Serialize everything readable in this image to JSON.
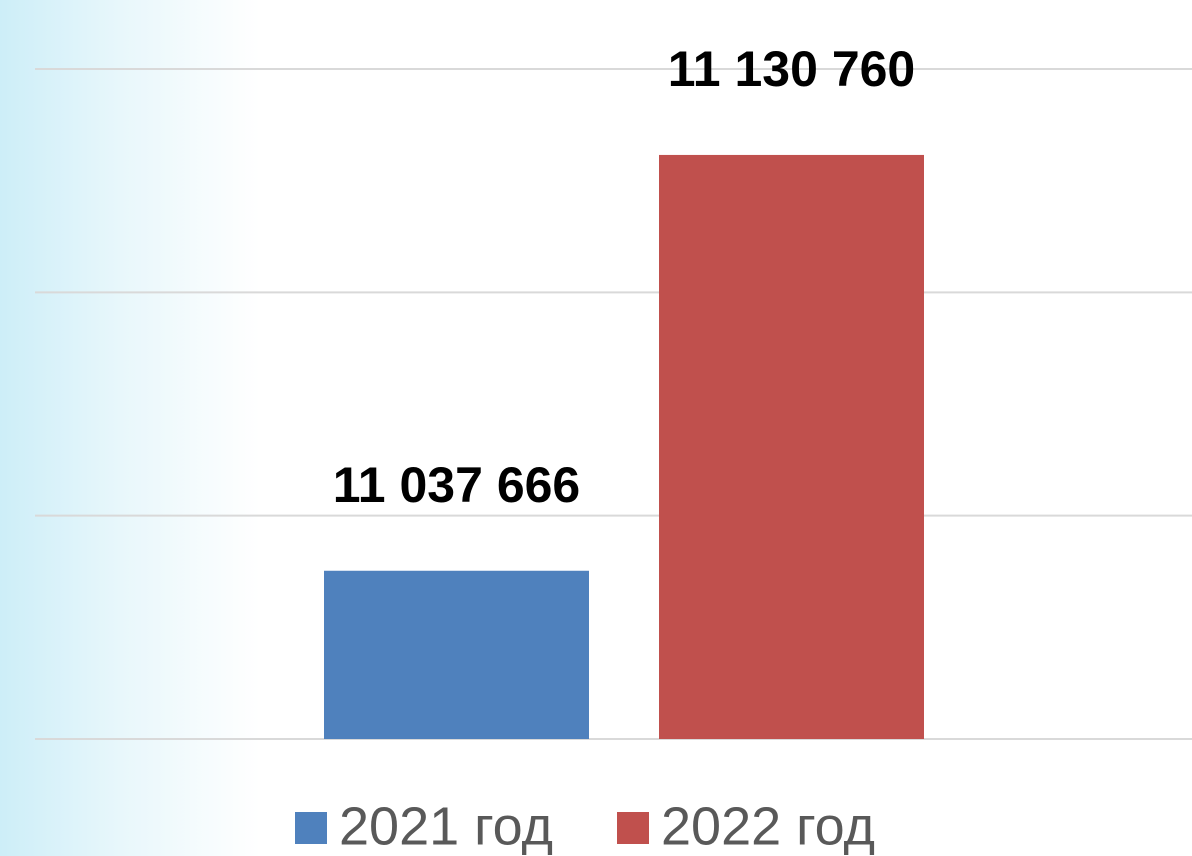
{
  "chart_data": {
    "type": "bar",
    "categories": [
      null
    ],
    "series": [
      {
        "name": "2021 год",
        "color": "#4f81bd",
        "values": [
          11037666
        ],
        "value_labels": [
          "11 037 666"
        ]
      },
      {
        "name": "2022 год",
        "color": "#c0504d",
        "values": [
          11130760
        ],
        "value_labels": [
          "11 130 760"
        ]
      }
    ],
    "ylim": [
      11000000,
      11150000
    ],
    "yticks": [
      11000000,
      11050000,
      11100000,
      11150000
    ],
    "grid": true,
    "legend": "bottom"
  }
}
